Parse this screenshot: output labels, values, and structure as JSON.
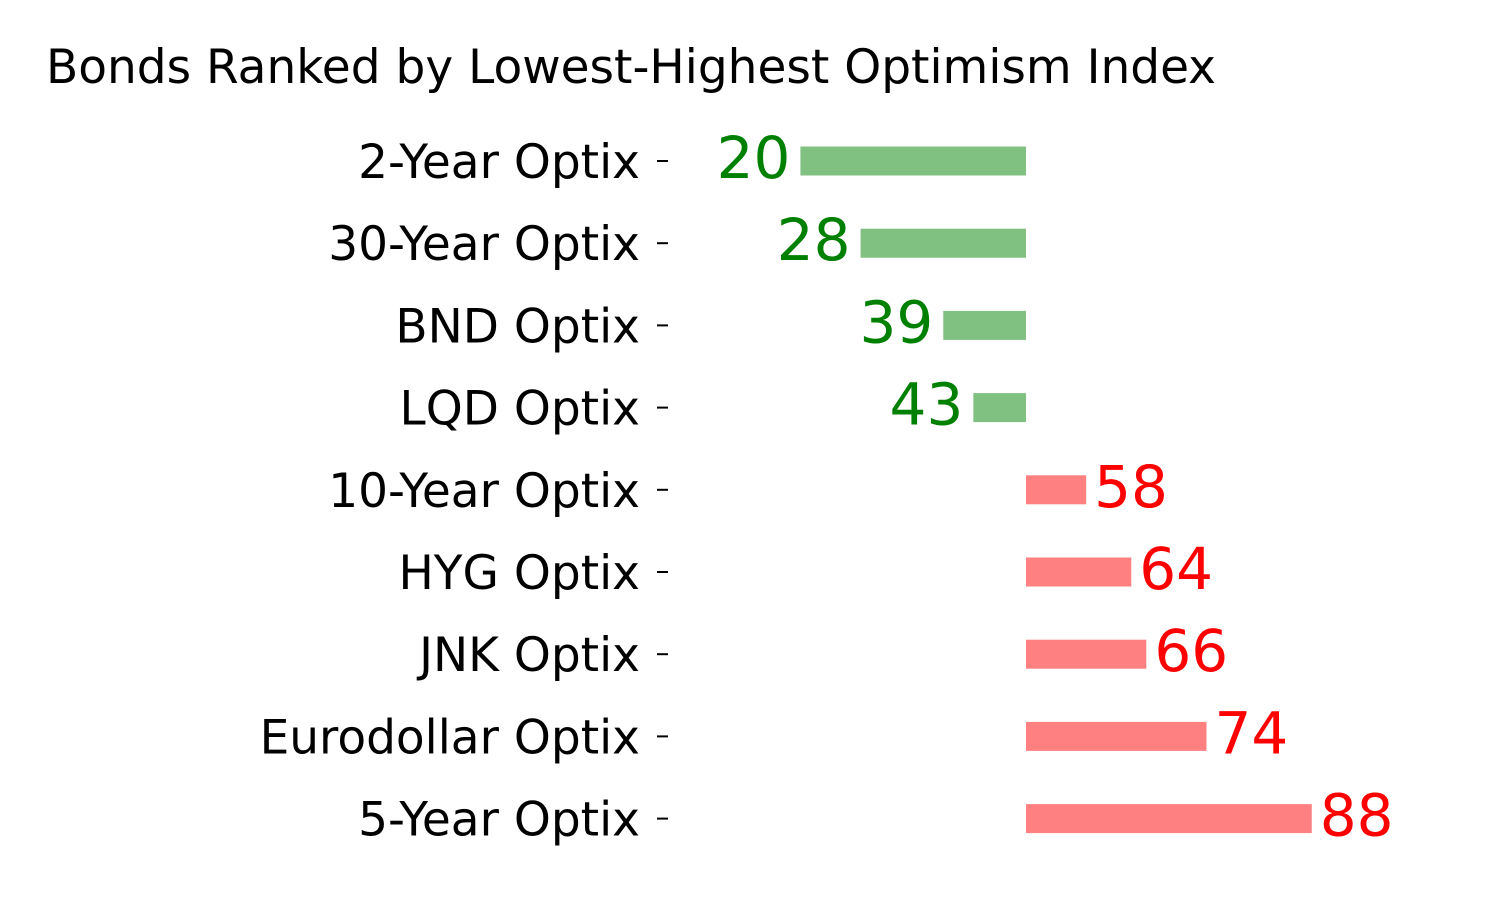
{
  "chart_data": {
    "type": "bar",
    "orientation": "horizontal",
    "title": "Bonds Ranked by Lowest-Highest Optimism Index",
    "xlabel": "",
    "ylabel": "",
    "baseline": 50,
    "xlim": [
      0,
      100
    ],
    "grid": false,
    "categories": [
      "2-Year Optix",
      "30-Year Optix",
      "BND Optix",
      "LQD Optix",
      "10-Year Optix",
      "HYG Optix",
      "JNK Optix",
      "Eurodollar Optix",
      "5-Year Optix"
    ],
    "values": [
      20,
      28,
      39,
      43,
      58,
      64,
      66,
      74,
      88
    ],
    "colors": {
      "below_bar": "#80c080",
      "below_label": "#008000",
      "above_bar": "#ff8080",
      "above_label": "#ff0000",
      "text": "#000000"
    }
  }
}
